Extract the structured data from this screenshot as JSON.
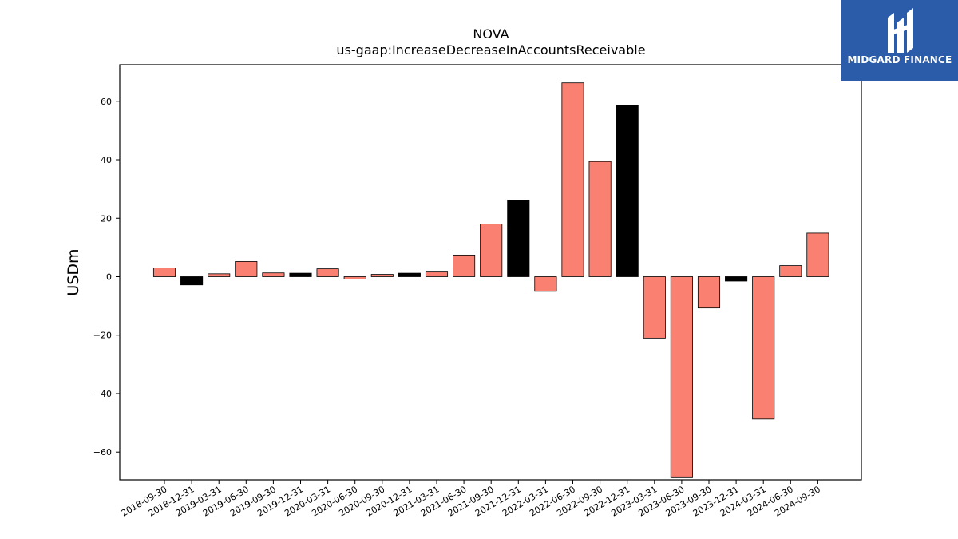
{
  "chart_data": {
    "type": "bar",
    "title": "NOVA",
    "subtitle": "us-gaap:IncreaseDecreaseInAccountsReceivable",
    "ylabel": "USDm",
    "xlabel": "",
    "ylim": [
      -69.5,
      72.5
    ],
    "yticks": [
      -60,
      -40,
      -20,
      0,
      20,
      40,
      60
    ],
    "grid": false,
    "categories": [
      "2018-09-30",
      "2018-12-31",
      "2019-03-31",
      "2019-06-30",
      "2019-09-30",
      "2019-12-31",
      "2020-03-31",
      "2020-06-30",
      "2020-09-30",
      "2020-12-31",
      "2021-03-31",
      "2021-06-30",
      "2021-09-30",
      "2021-12-31",
      "2022-03-31",
      "2022-06-30",
      "2022-09-30",
      "2022-12-31",
      "2023-03-31",
      "2023-06-30",
      "2023-09-30",
      "2023-12-31",
      "2024-03-31",
      "2024-06-30",
      "2024-09-30"
    ],
    "values": [
      3.0,
      -2.8,
      1.0,
      5.2,
      1.3,
      1.2,
      2.7,
      -0.8,
      0.8,
      1.2,
      1.6,
      7.4,
      18.0,
      26.2,
      -5.0,
      66.3,
      39.4,
      58.6,
      -21.0,
      -68.5,
      -10.7,
      -1.5,
      -48.7,
      3.8,
      14.9
    ],
    "highlight": [
      false,
      true,
      false,
      false,
      false,
      true,
      false,
      false,
      false,
      true,
      false,
      false,
      false,
      true,
      false,
      false,
      false,
      true,
      false,
      false,
      false,
      true,
      false,
      false,
      false
    ],
    "colors": {
      "normal": "#fa8072",
      "highlight": "#000000",
      "edge": "#000000"
    }
  },
  "logo": {
    "text": "MIDGARD FINANCE",
    "background": "#2a5caa"
  }
}
